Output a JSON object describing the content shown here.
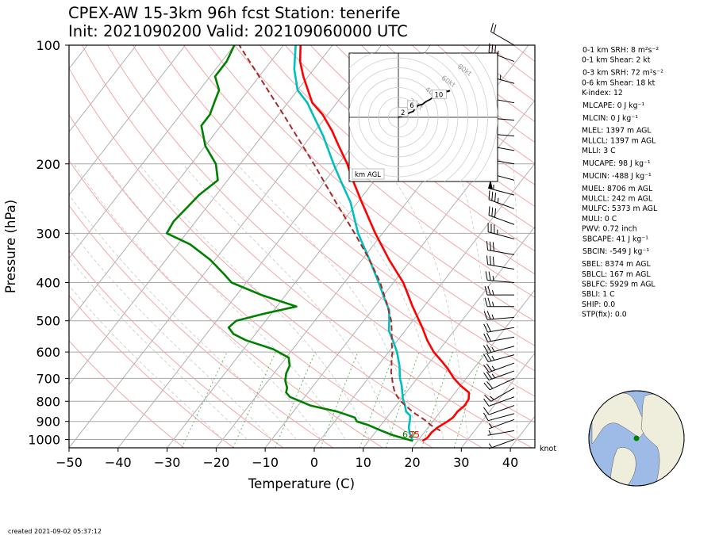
{
  "title_line1": "CPEX-AW 15-3km  96h fcst  Station: tenerife",
  "title_line2": "Init: 2021090200  Valid: 202109060000 UTC",
  "created": "created 2021-09-02 05:37:12",
  "barb_units": "knot",
  "chart_data": {
    "type": "skew-t",
    "xlabel": "Temperature (C)",
    "ylabel": "Pressure (hPa)",
    "xlim": [
      -50,
      45
    ],
    "ylim": [
      1050,
      100
    ],
    "y_log": true,
    "x_ticks": [
      -50,
      -40,
      -30,
      -20,
      -10,
      0,
      10,
      20,
      30,
      40
    ],
    "y_ticks": [
      100,
      200,
      300,
      400,
      500,
      600,
      700,
      800,
      900,
      1000
    ],
    "colors": {
      "temperature": "#ff0000",
      "dewpoint": "#008000",
      "wetbulb": "#00bfbf",
      "parcel": "#a52a2a",
      "isotherm": "#b0b0b0",
      "dry_adiabat": "#f4a6a6",
      "moist_adiabat": "#c8c8c8",
      "mixing_ratio": "#66bb66"
    },
    "series": [
      {
        "name": "",
        "key": "temperature",
        "points": [
          [
            1008,
            21.0
          ],
          [
            990,
            21.5
          ],
          [
            960,
            21.5
          ],
          [
            930,
            22.0
          ],
          [
            900,
            23.0
          ],
          [
            880,
            23.5
          ],
          [
            850,
            23.5
          ],
          [
            820,
            24.0
          ],
          [
            790,
            23.8
          ],
          [
            760,
            22.8
          ],
          [
            730,
            20.0
          ],
          [
            700,
            17.5
          ],
          [
            660,
            14.6
          ],
          [
            630,
            12.0
          ],
          [
            600,
            9.2
          ],
          [
            560,
            6.0
          ],
          [
            520,
            3.0
          ],
          [
            500,
            1.3
          ],
          [
            460,
            -2.3
          ],
          [
            420,
            -6.0
          ],
          [
            400,
            -8.0
          ],
          [
            350,
            -14.5
          ],
          [
            300,
            -21.5
          ],
          [
            250,
            -29.2
          ],
          [
            220,
            -34.5
          ],
          [
            200,
            -38.2
          ],
          [
            180,
            -42.8
          ],
          [
            165,
            -46.5
          ],
          [
            150,
            -51.0
          ],
          [
            140,
            -55.0
          ],
          [
            120,
            -61.0
          ],
          [
            110,
            -64.0
          ],
          [
            100,
            -66.5
          ]
        ]
      },
      {
        "name": "",
        "key": "wetbulb",
        "points": [
          [
            1008,
            19.0
          ],
          [
            990,
            18.2
          ],
          [
            960,
            17.0
          ],
          [
            930,
            16.0
          ],
          [
            900,
            15.3
          ],
          [
            870,
            14.5
          ],
          [
            850,
            13.0
          ],
          [
            820,
            11.8
          ],
          [
            790,
            10.4
          ],
          [
            760,
            9.2
          ],
          [
            730,
            8.0
          ],
          [
            700,
            6.5
          ],
          [
            650,
            4.4
          ],
          [
            600,
            1.7
          ],
          [
            560,
            -1.0
          ],
          [
            530,
            -3.3
          ],
          [
            500,
            -4.8
          ],
          [
            470,
            -6.5
          ],
          [
            440,
            -9.2
          ],
          [
            400,
            -13.0
          ],
          [
            350,
            -18.5
          ],
          [
            300,
            -25.0
          ],
          [
            250,
            -31.5
          ],
          [
            220,
            -37.0
          ],
          [
            200,
            -41.0
          ],
          [
            170,
            -47.5
          ],
          [
            150,
            -53.0
          ],
          [
            140,
            -56.0
          ],
          [
            130,
            -60.0
          ],
          [
            115,
            -64.0
          ],
          [
            100,
            -67.5
          ]
        ]
      },
      {
        "name": "",
        "key": "dewpoint",
        "points": [
          [
            1008,
            19.0
          ],
          [
            995,
            17.0
          ],
          [
            975,
            14.0
          ],
          [
            950,
            11.0
          ],
          [
            920,
            7.5
          ],
          [
            900,
            4.5
          ],
          [
            880,
            3.5
          ],
          [
            850,
            -1.0
          ],
          [
            820,
            -7.5
          ],
          [
            780,
            -13.0
          ],
          [
            760,
            -14.5
          ],
          [
            740,
            -15.0
          ],
          [
            710,
            -16.5
          ],
          [
            680,
            -17.5
          ],
          [
            650,
            -18.0
          ],
          [
            620,
            -19.5
          ],
          [
            590,
            -24.0
          ],
          [
            560,
            -31.0
          ],
          [
            540,
            -34.5
          ],
          [
            520,
            -36.5
          ],
          [
            500,
            -36.0
          ],
          [
            480,
            -31.5
          ],
          [
            460,
            -26.0
          ],
          [
            430,
            -35.0
          ],
          [
            400,
            -43.0
          ],
          [
            380,
            -46.0
          ],
          [
            350,
            -51.0
          ],
          [
            320,
            -57.5
          ],
          [
            300,
            -64.0
          ],
          [
            280,
            -64.5
          ],
          [
            260,
            -64.0
          ],
          [
            240,
            -63.5
          ],
          [
            220,
            -62.0
          ],
          [
            200,
            -65.0
          ],
          [
            180,
            -70.0
          ],
          [
            160,
            -74.0
          ],
          [
            150,
            -74.0
          ],
          [
            140,
            -75.0
          ],
          [
            130,
            -76.0
          ],
          [
            120,
            -79.0
          ],
          [
            110,
            -79.0
          ],
          [
            100,
            -80.0
          ]
        ]
      },
      {
        "name": "",
        "key": "parcel",
        "points": [
          [
            950,
            23.0
          ],
          [
            920,
            20.2
          ],
          [
            900,
            18.8
          ],
          [
            880,
            17.0
          ],
          [
            860,
            15.2
          ],
          [
            840,
            13.5
          ],
          [
            820,
            11.9
          ],
          [
            800,
            10.3
          ],
          [
            775,
            8.6
          ],
          [
            750,
            7.2
          ],
          [
            725,
            6.0
          ],
          [
            700,
            4.9
          ],
          [
            675,
            3.7
          ],
          [
            650,
            2.8
          ],
          [
            625,
            1.7
          ],
          [
            600,
            0.8
          ],
          [
            575,
            -0.5
          ],
          [
            550,
            -1.7
          ],
          [
            525,
            -3.0
          ],
          [
            500,
            -4.4
          ],
          [
            450,
            -8.2
          ],
          [
            400,
            -12.7
          ],
          [
            350,
            -18.5
          ],
          [
            300,
            -25.7
          ],
          [
            250,
            -34.5
          ],
          [
            200,
            -45.0
          ],
          [
            175,
            -51.5
          ],
          [
            150,
            -59.0
          ],
          [
            125,
            -68.0
          ],
          [
            100,
            -79.0
          ]
        ]
      }
    ],
    "surface_labels": [
      "6.2",
      "25"
    ],
    "wind_barbs": [
      {
        "p": 100,
        "speed_kt": 20,
        "dir": 300
      },
      {
        "p": 110,
        "speed_kt": 35,
        "dir": 290
      },
      {
        "p": 125,
        "speed_kt": 45,
        "dir": 285
      },
      {
        "p": 140,
        "speed_kt": 50,
        "dir": 280
      },
      {
        "p": 155,
        "speed_kt": 55,
        "dir": 275
      },
      {
        "p": 170,
        "speed_kt": 55,
        "dir": 275
      },
      {
        "p": 185,
        "speed_kt": 55,
        "dir": 280
      },
      {
        "p": 200,
        "speed_kt": 55,
        "dir": 280
      },
      {
        "p": 220,
        "speed_kt": 55,
        "dir": 285
      },
      {
        "p": 240,
        "speed_kt": 55,
        "dir": 285
      },
      {
        "p": 260,
        "speed_kt": 35,
        "dir": 290
      },
      {
        "p": 285,
        "speed_kt": 30,
        "dir": 290
      },
      {
        "p": 310,
        "speed_kt": 35,
        "dir": 285
      },
      {
        "p": 340,
        "speed_kt": 30,
        "dir": 280
      },
      {
        "p": 370,
        "speed_kt": 30,
        "dir": 280
      },
      {
        "p": 400,
        "speed_kt": 25,
        "dir": 275
      },
      {
        "p": 430,
        "speed_kt": 25,
        "dir": 270
      },
      {
        "p": 460,
        "speed_kt": 25,
        "dir": 270
      },
      {
        "p": 490,
        "speed_kt": 25,
        "dir": 265
      },
      {
        "p": 520,
        "speed_kt": 20,
        "dir": 260
      },
      {
        "p": 550,
        "speed_kt": 20,
        "dir": 260
      },
      {
        "p": 580,
        "speed_kt": 25,
        "dir": 255
      },
      {
        "p": 610,
        "speed_kt": 25,
        "dir": 255
      },
      {
        "p": 640,
        "speed_kt": 25,
        "dir": 250
      },
      {
        "p": 670,
        "speed_kt": 25,
        "dir": 250
      },
      {
        "p": 700,
        "speed_kt": 20,
        "dir": 245
      },
      {
        "p": 740,
        "speed_kt": 15,
        "dir": 240
      },
      {
        "p": 780,
        "speed_kt": 10,
        "dir": 250
      },
      {
        "p": 820,
        "speed_kt": 10,
        "dir": 250
      },
      {
        "p": 860,
        "speed_kt": 10,
        "dir": 255
      },
      {
        "p": 890,
        "speed_kt": 5,
        "dir": 250
      },
      {
        "p": 950,
        "speed_kt": 5,
        "dir": 260
      },
      {
        "p": 1000,
        "speed_kt": 5,
        "dir": 250
      }
    ],
    "hodograph": {
      "rings_kt": [
        20,
        40,
        60,
        80
      ],
      "ring_labels": [
        "20kt",
        "40kt",
        "60kt",
        "80kt"
      ],
      "corner_label": "km AGL",
      "trace_uv": [
        [
          0,
          0
        ],
        [
          8,
          3
        ],
        [
          12,
          5
        ],
        [
          15,
          6
        ],
        [
          17,
          9
        ],
        [
          20,
          12
        ],
        [
          24,
          13
        ],
        [
          28,
          16
        ],
        [
          32,
          18
        ],
        [
          36,
          21
        ],
        [
          42,
          24
        ],
        [
          47,
          26
        ],
        [
          50,
          26
        ],
        [
          52,
          27
        ],
        [
          48,
          26
        ],
        [
          43,
          24
        ]
      ],
      "height_labels": [
        {
          "label": "2",
          "u": 4,
          "v": 5
        },
        {
          "label": "6",
          "u": 13,
          "v": 12
        },
        {
          "label": "10",
          "u": 38,
          "v": 23
        }
      ]
    },
    "indices": [
      "0-1 km SRH: 8 m²s⁻²",
      "0-1 km Shear: 2 kt",
      "0-3 km SRH: 72 m²s⁻²",
      "0-6 km Shear: 18 kt",
      "K-index: 12",
      "MLCAPE: 0 J kg⁻¹",
      "MLCIN: 0 J kg⁻¹",
      "MLEL: 1397 m AGL",
      "MLLCL: 1397 m AGL",
      "MLLI: 3 C",
      "MUCAPE: 98 J kg⁻¹",
      "MUCIN: -488 J kg⁻¹",
      "MUEL: 8706 m AGL",
      "MULCL: 242 m AGL",
      "MULFC: 5373 m AGL",
      "MULI: 0 C",
      "PWV: 0.72 inch",
      "SBCAPE: 41 J kg⁻¹",
      "SBCIN: -549 J kg⁻¹",
      "SBEL: 8374 m AGL",
      "SBLCL: 167 m AGL",
      "SBLFC: 5929 m AGL",
      "SBLI: 1 C",
      "SHIP: 0.0",
      "STP(fix): 0.0"
    ],
    "globe": {
      "station_lat": 28.3,
      "station_lon": -16.5
    }
  }
}
